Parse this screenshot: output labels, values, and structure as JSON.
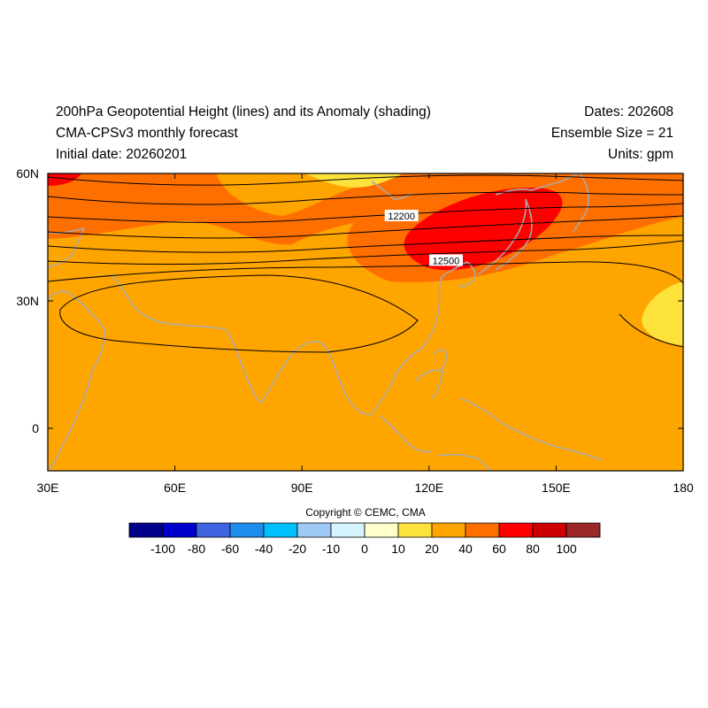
{
  "header": {
    "title_line1": "200hPa Geopotential Height (lines) and its Anomaly (shading)",
    "title_line2": "CMA-CPSv3 monthly forecast",
    "title_line3": "Initial date: 20260201",
    "dates": "Dates: 202608",
    "ensemble": "Ensemble Size = 21",
    "units": "Units: gpm"
  },
  "map": {
    "lon_range": [
      30,
      180
    ],
    "lat_range": [
      -10,
      60
    ],
    "lon_ticks": [
      {
        "value": 30,
        "label": "30E"
      },
      {
        "value": 60,
        "label": "60E"
      },
      {
        "value": 90,
        "label": "90E"
      },
      {
        "value": 120,
        "label": "120E"
      },
      {
        "value": 150,
        "label": "150E"
      },
      {
        "value": 180,
        "label": "180"
      }
    ],
    "lat_ticks": [
      {
        "value": 60,
        "label": "60N"
      },
      {
        "value": 30,
        "label": "30N"
      },
      {
        "value": 0,
        "label": "0"
      }
    ],
    "contour_labels": [
      {
        "text": "12200",
        "lon": 113.5,
        "lat": 50
      },
      {
        "text": "12500",
        "lon": 124,
        "lat": 39.5
      }
    ]
  },
  "colorbar": {
    "colors": [
      "#00008b",
      "#0000cd",
      "#3e64e0",
      "#1e8ced",
      "#00bfff",
      "#9ecbf5",
      "#d4f4ff",
      "#ffffcc",
      "#fde23b",
      "#ffa500",
      "#ff6f00",
      "#ff0000",
      "#cc0000",
      "#9b2727"
    ],
    "labels": [
      "-100",
      "-80",
      "-60",
      "-40",
      "-20",
      "-10",
      "0",
      "10",
      "20",
      "40",
      "60",
      "80",
      "100"
    ]
  },
  "copyright": "Copyright © CEMC, CMA"
}
